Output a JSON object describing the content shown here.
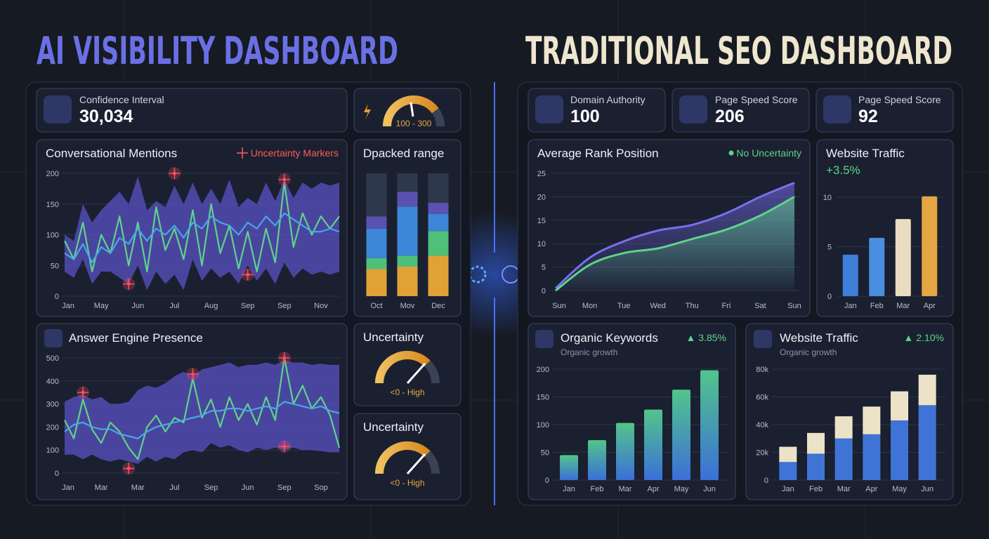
{
  "left": {
    "title": "AI VISIBILITY DASHBOARD",
    "kpi": {
      "label": "Confidence Interval",
      "value": "30,034"
    },
    "gauge": {
      "label": "100 - 300"
    },
    "mentions": {
      "type": "band_line",
      "title": "Conversational Mentions",
      "legend": "Uncertainty Markers",
      "categories": [
        "Jan",
        null,
        null,
        null,
        "May",
        null,
        null,
        null,
        "Jun",
        null,
        null,
        null,
        "Jul",
        null,
        null,
        null,
        "Aug",
        null,
        null,
        null,
        "Sep",
        null,
        null,
        null,
        "Sep",
        null,
        null,
        null,
        "Nov",
        null,
        null
      ],
      "ylim": [
        0,
        200
      ],
      "yticks": [
        0,
        50,
        100,
        150,
        200
      ],
      "band": {
        "color": "#5a52c4",
        "upper": [
          100,
          90,
          150,
          120,
          140,
          155,
          170,
          150,
          195,
          140,
          155,
          145,
          180,
          150,
          185,
          150,
          175,
          150,
          190,
          145,
          160,
          150,
          185,
          155,
          190,
          160,
          185,
          175,
          185,
          180,
          185
        ],
        "lower": [
          40,
          30,
          60,
          20,
          40,
          40,
          30,
          20,
          50,
          10,
          40,
          20,
          35,
          10,
          60,
          25,
          45,
          30,
          40,
          20,
          50,
          25,
          45,
          20,
          55,
          30,
          45,
          35,
          40,
          35,
          40
        ]
      },
      "series": [
        {
          "color": "#5fd38a",
          "values": [
            90,
            60,
            120,
            40,
            100,
            70,
            130,
            50,
            120,
            40,
            145,
            75,
            110,
            60,
            140,
            50,
            150,
            70,
            115,
            45,
            105,
            40,
            110,
            55,
            185,
            80,
            135,
            100,
            130,
            110,
            130
          ]
        },
        {
          "color": "#49a6ea",
          "values": [
            70,
            60,
            85,
            55,
            80,
            70,
            95,
            85,
            110,
            90,
            110,
            100,
            115,
            95,
            120,
            110,
            130,
            120,
            115,
            100,
            120,
            110,
            130,
            115,
            135,
            125,
            115,
            105,
            105,
            110,
            105
          ]
        }
      ],
      "markers": {
        "color": "#ff4d5e",
        "x": [
          7,
          12,
          20,
          24
        ],
        "y": [
          20,
          200,
          35,
          190
        ]
      }
    },
    "range": {
      "type": "stacked_bar",
      "title": "Dpacked range",
      "categories": [
        "Oct",
        "Mov",
        "Dec"
      ],
      "ylim": [
        0,
        100
      ],
      "series": [
        {
          "color": "#e1a235",
          "values": [
            22,
            24,
            33
          ]
        },
        {
          "color": "#4fbf7a",
          "values": [
            9,
            9,
            20
          ]
        },
        {
          "color": "#3d86d8",
          "values": [
            24,
            40,
            14
          ]
        },
        {
          "color": "#5a52b0",
          "values": [
            10,
            12,
            9
          ]
        },
        {
          "color": "#2e384c",
          "values": [
            35,
            15,
            24
          ]
        }
      ]
    },
    "presence": {
      "type": "band_line",
      "title": "Answer Engine Presence",
      "categories": [
        "Jan",
        null,
        null,
        null,
        "Mar",
        null,
        null,
        null,
        "Mar",
        null,
        null,
        null,
        "Jul",
        null,
        null,
        null,
        "Sep",
        null,
        null,
        null,
        "Jun",
        null,
        null,
        null,
        "Sep",
        null,
        null,
        null,
        "Sop",
        null,
        null
      ],
      "ylim": [
        0,
        500
      ],
      "yticks": [
        0,
        100,
        200,
        300,
        400,
        500
      ],
      "band": {
        "color": "#5a52c4",
        "upper": [
          310,
          330,
          340,
          320,
          330,
          300,
          300,
          310,
          360,
          380,
          370,
          390,
          420,
          440,
          420,
          450,
          460,
          470,
          480,
          460,
          470,
          470,
          480,
          470,
          490,
          480,
          480,
          470,
          475,
          470,
          470
        ],
        "lower": [
          80,
          80,
          60,
          80,
          60,
          50,
          60,
          50,
          40,
          70,
          50,
          70,
          60,
          90,
          100,
          90,
          130,
          110,
          120,
          100,
          90,
          110,
          100,
          110,
          100,
          110,
          100,
          100,
          95,
          90,
          90
        ]
      },
      "series": [
        {
          "color": "#5fd38a",
          "values": [
            230,
            150,
            320,
            190,
            130,
            220,
            180,
            110,
            60,
            200,
            250,
            180,
            240,
            220,
            410,
            240,
            320,
            200,
            330,
            230,
            300,
            210,
            330,
            230,
            500,
            300,
            380,
            280,
            330,
            250,
            110
          ]
        },
        {
          "color": "#49a6ea",
          "values": [
            180,
            210,
            220,
            200,
            190,
            190,
            170,
            160,
            150,
            180,
            200,
            210,
            220,
            230,
            240,
            250,
            270,
            270,
            280,
            280,
            270,
            280,
            290,
            280,
            310,
            300,
            290,
            280,
            290,
            270,
            260
          ]
        }
      ],
      "markers": {
        "color": "#ff4d5e",
        "x": [
          2,
          7,
          14,
          24,
          24
        ],
        "y": [
          350,
          20,
          430,
          500,
          115
        ]
      }
    },
    "uncertainty": [
      {
        "title": "Uncertainty",
        "label": "<0 - High"
      },
      {
        "title": "Uncertainty",
        "label": "<0 - High"
      }
    ]
  },
  "right": {
    "title": "TRADITIONAL SEO DASHBOARD",
    "kpis": [
      {
        "label": "Domain Authority",
        "value": "100"
      },
      {
        "label": "Page Speed Score",
        "value": "206"
      },
      {
        "label": "Page Speed Score",
        "value": "92"
      }
    ],
    "rank": {
      "type": "area_line",
      "title": "Average Rank Position",
      "legend": "No Uncertainty",
      "categories": [
        "Sun",
        "Mon",
        "Tue",
        "Wed",
        "Thu",
        "Fri",
        "Sat",
        "Sun"
      ],
      "ylim": [
        0,
        25
      ],
      "yticks": [
        0,
        5,
        10,
        15,
        20,
        25
      ],
      "series": [
        {
          "color": "#7a6ff0",
          "values": [
            0.5,
            7,
            10.5,
            12.8,
            14,
            16.5,
            20,
            23
          ]
        },
        {
          "color": "#5fd38a",
          "values": [
            0,
            5.5,
            8,
            9,
            11,
            13,
            16,
            20
          ]
        }
      ]
    },
    "traffic": {
      "type": "bar",
      "title": "Website Traffic",
      "change": "+3.5%",
      "categories": [
        "Jan",
        "Feb",
        "Mar",
        "Apr"
      ],
      "values": [
        4.2,
        5.9,
        7.8,
        10.1
      ],
      "colors": [
        "#3f7fd9",
        "#4a8ee0",
        "#e9dcc0",
        "#e4a543"
      ],
      "ylim": [
        0,
        12
      ],
      "yticks": [
        0,
        5,
        10
      ]
    },
    "keywords": {
      "type": "bar",
      "title": "Organic Keywords",
      "change": "▲ 3.85%",
      "subtitle": "Organic growth",
      "categories": [
        "Jan",
        "Feb",
        "Mar",
        "Apr",
        "May",
        "Jun"
      ],
      "values": [
        45,
        72,
        103,
        127,
        163,
        198
      ],
      "colors": [
        "#4fbf86",
        "#4fbf86",
        "#4fbf86",
        "#4fbf86",
        "#4fbf86",
        "#4fbf86"
      ],
      "ylim": [
        0,
        200
      ],
      "yticks": [
        0,
        50,
        100,
        150,
        200
      ]
    },
    "traffic2": {
      "type": "stacked_bar",
      "title": "Website Traffic",
      "change": "▲ 2.10%",
      "subtitle": "Organic growth",
      "categories": [
        "Jan",
        "Feb",
        "Mar",
        "Apr",
        "May",
        "Jun"
      ],
      "ylim": [
        0,
        80000
      ],
      "yticks": [
        0,
        {
          "value": 20000,
          "label": "20k"
        },
        {
          "value": 40000,
          "label": "40k"
        },
        {
          "value": 60000,
          "label": "60k"
        },
        {
          "value": 80000,
          "label": "80k"
        }
      ],
      "series": [
        {
          "color": "#3f74d6",
          "values": [
            13000,
            19000,
            30000,
            33000,
            43000,
            54000
          ]
        },
        {
          "color": "#ece2c8",
          "values": [
            11000,
            15000,
            16000,
            20000,
            21000,
            22000
          ]
        }
      ]
    }
  }
}
